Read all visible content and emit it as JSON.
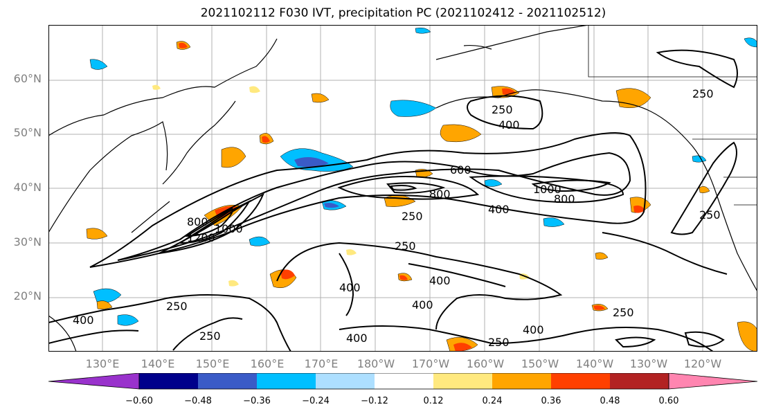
{
  "title": "2021102112 F030 IVT, precipitation PC (2021102412 - 2021102512)",
  "lat_labels": [
    "60°N",
    "50°N",
    "40°N",
    "30°N",
    "20°N"
  ],
  "lon_labels": [
    "130°E",
    "140°E",
    "150°E",
    "160°E",
    "170°E",
    "180°W",
    "170°W",
    "160°W",
    "150°W",
    "140°W",
    "130°W",
    "120°W"
  ],
  "contour_labels": [
    "250",
    "400",
    "600",
    "800",
    "1000",
    "1200"
  ],
  "colorbar": {
    "ticks": [
      "−0.60",
      "−0.48",
      "−0.36",
      "−0.24",
      "−0.12",
      "0.12",
      "0.24",
      "0.36",
      "0.48",
      "0.60"
    ],
    "colors": [
      "#9932CC",
      "#00008B",
      "#3A5BC7",
      "#00BFFF",
      "#ADDFFF",
      "#FFFFFF",
      "#FFE97F",
      "#FFA500",
      "#FF4000",
      "#B22222",
      "#FF85B0"
    ]
  }
}
